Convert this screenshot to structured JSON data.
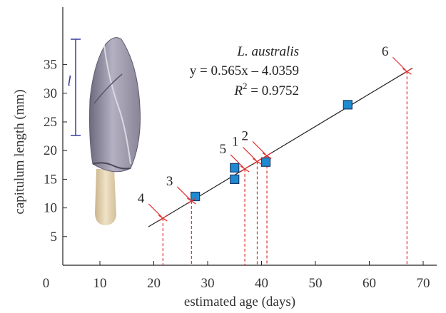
{
  "chart_data": {
    "type": "scatter",
    "title": "",
    "xlabel": "estimated age (days)",
    "ylabel": "capitulum length (mm)",
    "xlim": [
      0,
      70
    ],
    "ylim": [
      0,
      37
    ],
    "x_ticks": [
      "0",
      "10",
      "20",
      "30",
      "40",
      "50",
      "60",
      "70"
    ],
    "y_ticks": [
      "5",
      "10",
      "15",
      "20",
      "25",
      "30",
      "35"
    ],
    "grid": false,
    "annotation": {
      "species": "L. australis",
      "equation": "y = 0.565x – 4.0359",
      "r2_prefix": "R",
      "r2_sup": "2",
      "r2_value": " = 0.9752"
    },
    "regression": {
      "slope": 0.565,
      "intercept": -4.0359,
      "x_range": [
        19,
        68
      ]
    },
    "observed_points": [
      {
        "x": 27.7,
        "y": 12.0
      },
      {
        "x": 35.0,
        "y": 15.0
      },
      {
        "x": 35.0,
        "y": 17.0
      },
      {
        "x": 40.8,
        "y": 18.0
      },
      {
        "x": 56.0,
        "y": 28.0
      }
    ],
    "estimated_points": [
      {
        "label": "1",
        "x": 39.2,
        "y": 18.1
      },
      {
        "label": "2",
        "x": 41.0,
        "y": 19.1
      },
      {
        "label": "3",
        "x": 27.0,
        "y": 11.2
      },
      {
        "label": "4",
        "x": 21.7,
        "y": 8.2
      },
      {
        "label": "5",
        "x": 36.9,
        "y": 16.8
      },
      {
        "label": "6",
        "x": 67.0,
        "y": 33.8
      }
    ],
    "scale_bar_label": "l",
    "colors": {
      "marker_fill": "#1f8ad0",
      "marker_stroke": "#1a3a6b",
      "dashed": "#e0302e",
      "line": "#222222",
      "scale_bar": "#3a3aa0"
    }
  }
}
